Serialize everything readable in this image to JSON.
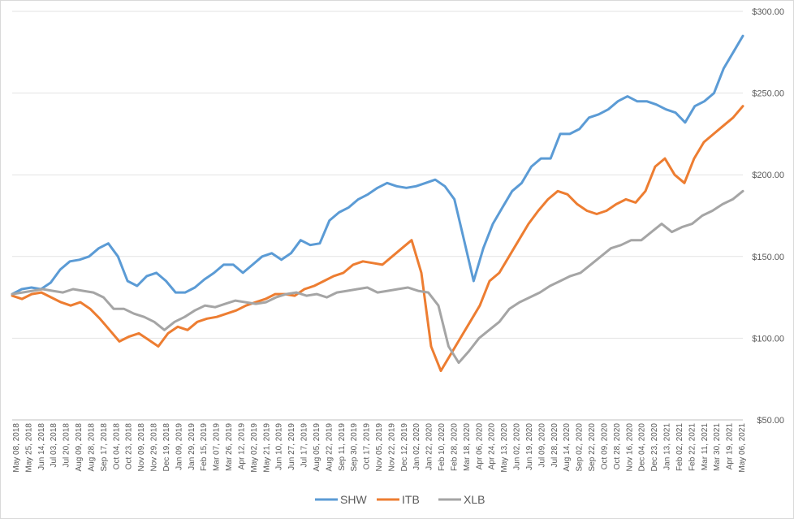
{
  "chart_data": {
    "type": "line",
    "title": "",
    "xlabel": "",
    "ylabel": "",
    "ylim": [
      50,
      300
    ],
    "y_ticks": [
      "$300.00",
      "$250.00",
      "$200.00",
      "$150.00",
      "$100.00",
      "$50.00"
    ],
    "y_tick_values": [
      300,
      250,
      200,
      150,
      100,
      50
    ],
    "y_axis_side": "right",
    "grid": true,
    "legend": "bottom",
    "x_ticks": [
      "May 08, 2018",
      "May 25, 2018",
      "Jun 14, 2018",
      "Jul 03, 2018",
      "Jul 20, 2018",
      "Aug 09, 2018",
      "Aug 28, 2018",
      "Sep 17, 2018",
      "Oct 04, 2018",
      "Oct 23, 2018",
      "Nov 09, 2018",
      "Nov 29, 2018",
      "Dec 19, 2018",
      "Jan 09, 2019",
      "Jan 29, 2019",
      "Feb 15, 2019",
      "Mar 07, 2019",
      "Mar 26, 2019",
      "Apr 12, 2019",
      "May 02, 2019",
      "May 21, 2019",
      "Jun 10, 2019",
      "Jun 27, 2019",
      "Jul 17, 2019",
      "Aug 05, 2019",
      "Aug 22, 2019",
      "Sep 11, 2019",
      "Sep 30, 2019",
      "Oct 17, 2019",
      "Nov 05, 2019",
      "Nov 22, 2019",
      "Dec 12, 2019",
      "Jan 02, 2020",
      "Jan 22, 2020",
      "Feb 10, 2020",
      "Feb 28, 2020",
      "Mar 18, 2020",
      "Apr 06, 2020",
      "Apr 24, 2020",
      "May 13, 2020",
      "Jun 02, 2020",
      "Jun 19, 2020",
      "Jul 09, 2020",
      "Jul 28, 2020",
      "Aug 14, 2020",
      "Sep 02, 2020",
      "Sep 22, 2020",
      "Oct 09, 2020",
      "Oct 28, 2020",
      "Nov 16, 2020",
      "Dec 04, 2020",
      "Dec 23, 2020",
      "Jan 13, 2021",
      "Feb 02, 2021",
      "Feb 22, 2021",
      "Mar 11, 2021",
      "Mar 30, 2021",
      "Apr 19, 2021",
      "May 06, 2021"
    ],
    "series": [
      {
        "name": "SHW",
        "color": "#5b9bd5",
        "values": [
          127,
          130,
          131,
          130,
          134,
          142,
          147,
          148,
          150,
          155,
          158,
          150,
          135,
          132,
          138,
          140,
          135,
          128,
          128,
          131,
          136,
          140,
          145,
          145,
          140,
          145,
          150,
          152,
          148,
          152,
          160,
          157,
          158,
          172,
          177,
          180,
          185,
          188,
          192,
          195,
          193,
          192,
          193,
          195,
          197,
          193,
          185,
          160,
          135,
          155,
          170,
          180,
          190,
          195,
          205,
          210,
          210,
          225,
          225,
          228,
          235,
          237,
          240,
          245,
          248,
          245,
          245,
          243,
          240,
          238,
          232,
          242,
          245,
          250,
          265,
          275,
          285
        ]
      },
      {
        "name": "ITB",
        "color": "#ed7d31",
        "values": [
          126,
          124,
          127,
          128,
          125,
          122,
          120,
          122,
          118,
          112,
          105,
          98,
          101,
          103,
          99,
          95,
          103,
          107,
          105,
          110,
          112,
          113,
          115,
          117,
          120,
          122,
          124,
          127,
          127,
          126,
          130,
          132,
          135,
          138,
          140,
          145,
          147,
          146,
          145,
          150,
          155,
          160,
          140,
          95,
          80,
          90,
          100,
          110,
          120,
          135,
          140,
          150,
          160,
          170,
          178,
          185,
          190,
          188,
          182,
          178,
          176,
          178,
          182,
          185,
          183,
          190,
          205,
          210,
          200,
          195,
          210,
          220,
          225,
          230,
          235,
          242
        ]
      },
      {
        "name": "XLB",
        "color": "#a5a5a5",
        "values": [
          127,
          128,
          129,
          130,
          129,
          128,
          130,
          129,
          128,
          125,
          118,
          118,
          115,
          113,
          110,
          105,
          110,
          113,
          117,
          120,
          119,
          121,
          123,
          122,
          121,
          122,
          125,
          127,
          128,
          126,
          127,
          125,
          128,
          129,
          130,
          131,
          128,
          129,
          130,
          131,
          129,
          128,
          120,
          95,
          85,
          92,
          100,
          105,
          110,
          118,
          122,
          125,
          128,
          132,
          135,
          138,
          140,
          145,
          150,
          155,
          157,
          160,
          160,
          165,
          170,
          165,
          168,
          170,
          175,
          178,
          182,
          185,
          190
        ]
      }
    ]
  }
}
